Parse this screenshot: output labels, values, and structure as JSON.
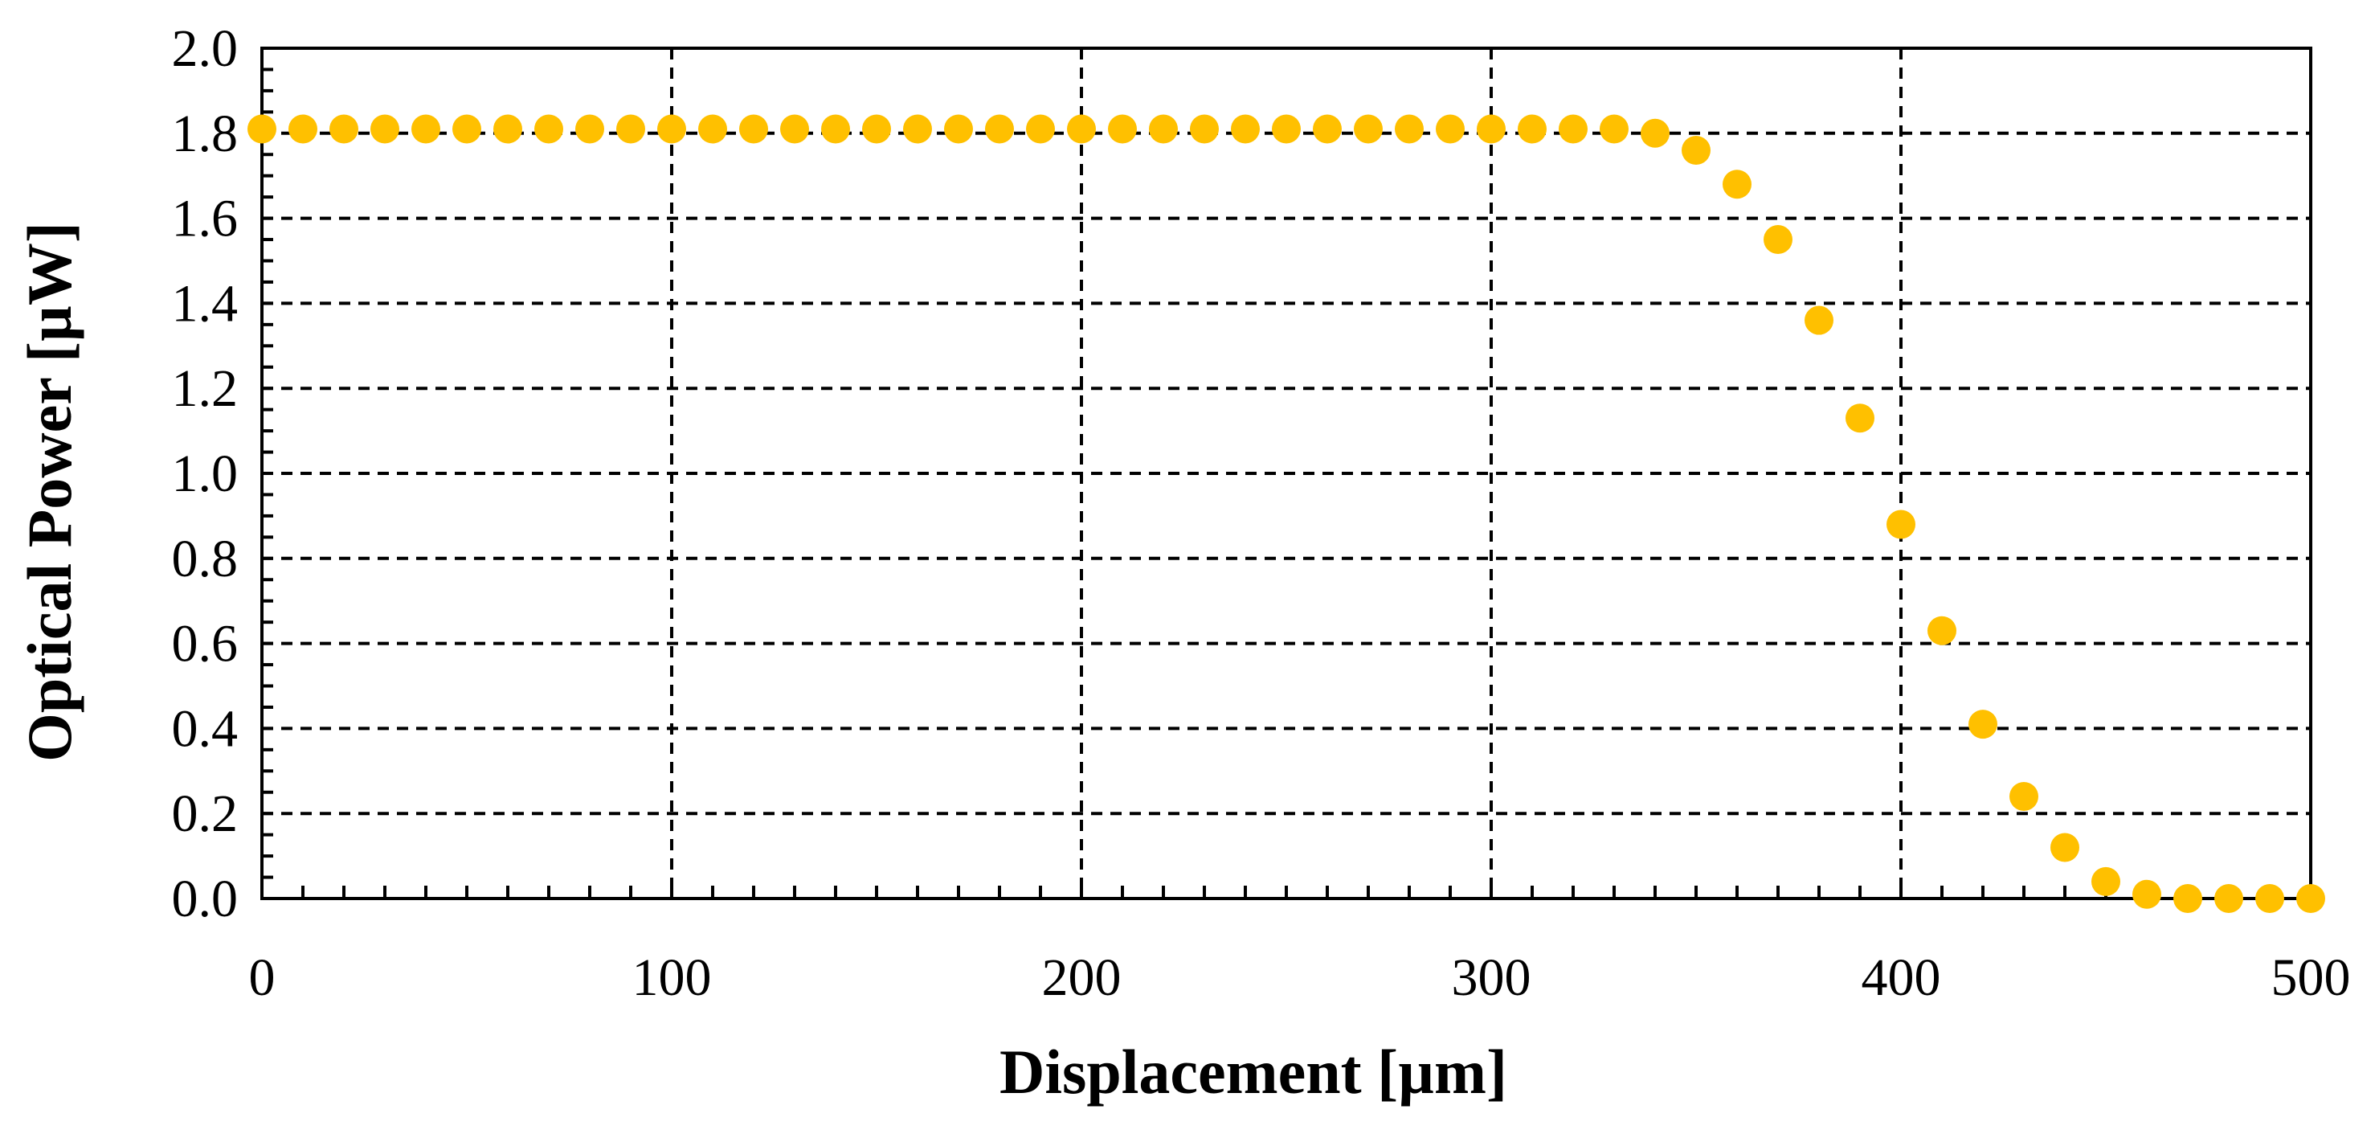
{
  "chart_data": {
    "type": "scatter",
    "xlabel": "Displacement [µm]",
    "ylabel": "Optical Power [µW]",
    "xlim": [
      0,
      500
    ],
    "ylim": [
      0,
      2.0
    ],
    "x_ticks": [
      "0",
      "100",
      "200",
      "300",
      "400",
      "500"
    ],
    "y_ticks": [
      "0.0",
      "0.2",
      "0.4",
      "0.6",
      "0.8",
      "1.0",
      "1.2",
      "1.4",
      "1.6",
      "1.8",
      "2.0"
    ],
    "grid": "dashed major gridlines",
    "legend": "none",
    "marker_color": "#FFC000",
    "series": [
      {
        "x": [
          0,
          10,
          20,
          30,
          40,
          50,
          60,
          70,
          80,
          90,
          100,
          110,
          120,
          130,
          140,
          150,
          160,
          170,
          180,
          190,
          200,
          210,
          220,
          230,
          240,
          250,
          260,
          270,
          280,
          290,
          300,
          310,
          320,
          330,
          340,
          350,
          360,
          370,
          380,
          390,
          400,
          410,
          420,
          430,
          440,
          450,
          460,
          470,
          480,
          490,
          500
        ],
        "y": [
          1.81,
          1.81,
          1.81,
          1.81,
          1.81,
          1.81,
          1.81,
          1.81,
          1.81,
          1.81,
          1.81,
          1.81,
          1.81,
          1.81,
          1.81,
          1.81,
          1.81,
          1.81,
          1.81,
          1.81,
          1.81,
          1.81,
          1.81,
          1.81,
          1.81,
          1.81,
          1.81,
          1.81,
          1.81,
          1.81,
          1.81,
          1.81,
          1.81,
          1.81,
          1.8,
          1.76,
          1.68,
          1.55,
          1.36,
          1.13,
          0.88,
          0.63,
          0.41,
          0.24,
          0.12,
          0.04,
          0.01,
          0.0,
          0.0,
          0.0,
          0.0
        ]
      }
    ]
  }
}
